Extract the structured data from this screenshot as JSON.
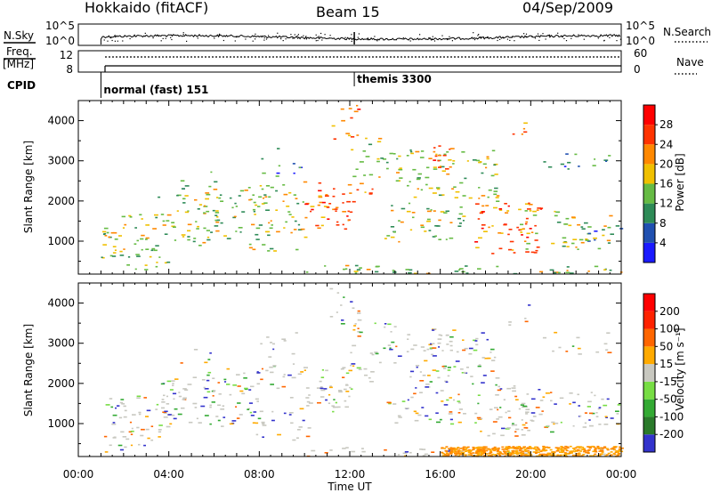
{
  "header": {
    "station": "Hokkaido (fitACF)",
    "beam": "Beam 15",
    "date": "04/Sep/2009"
  },
  "top_panel": {
    "left_label": "N.Sky",
    "right_label": "N.Search",
    "y_ticks_left": [
      "10^5",
      "10^0"
    ],
    "y_ticks_right": [
      "10^5",
      "10^0"
    ]
  },
  "freq_panel": {
    "left_label_1": "Freq.",
    "left_label_2": "[MHz]",
    "right_label": "Nave",
    "y_ticks_left": [
      "12",
      "8"
    ],
    "y_ticks_right": [
      "60",
      "0"
    ]
  },
  "cpid": {
    "label": "CPID",
    "segments": [
      {
        "start_hour": 1.0,
        "text": "normal (fast) 151"
      },
      {
        "start_hour": 12.2,
        "text": "themis 3300"
      }
    ]
  },
  "chart_data": [
    {
      "type": "heatmap",
      "name": "power",
      "ylabel": "Slant Range [km]",
      "xlim_hours": [
        0,
        24
      ],
      "ylim": [
        180,
        4500
      ],
      "y_ticks": [
        1000,
        2000,
        3000,
        4000
      ],
      "colorbar_label": "Power [dB]",
      "colorbar_ticks": [
        "28",
        "24",
        "20",
        "16",
        "12",
        "8",
        "4"
      ],
      "colorbar_colors": [
        "#1a1aff",
        "#2050b0",
        "#2e8b57",
        "#66bb44",
        "#f0c000",
        "#ff8800",
        "#ff3300",
        "#ff0000"
      ]
    },
    {
      "type": "heatmap",
      "name": "velocity",
      "ylabel": "Slant Range [km]",
      "xlabel": "Time UT",
      "xlim_hours": [
        0,
        24
      ],
      "ylim": [
        180,
        4500
      ],
      "y_ticks": [
        1000,
        2000,
        3000,
        4000
      ],
      "x_tick_labels": [
        "00:00",
        "04:00",
        "08:00",
        "12:00",
        "16:00",
        "20:00",
        "00:00"
      ],
      "colorbar_label": "Velocity [m s⁻¹]",
      "colorbar_ticks": [
        "200",
        "100",
        "50",
        "15",
        "-15",
        "-50",
        "-100",
        "-200"
      ],
      "colorbar_colors": [
        "#3333cc",
        "#2a7a2a",
        "#33aa33",
        "#77dd44",
        "#c8c8c0",
        "#ffaa00",
        "#ff6600",
        "#ff2200",
        "#ff0000"
      ]
    }
  ]
}
